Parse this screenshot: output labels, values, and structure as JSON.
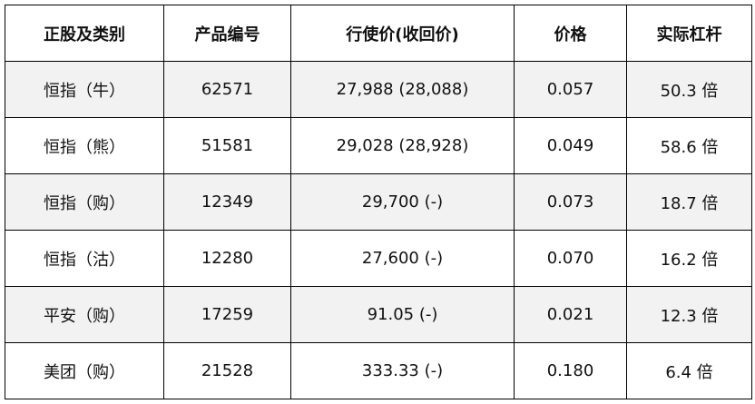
{
  "table": {
    "header": [
      "正股及类别",
      "产品编号",
      "行使价(收回价)",
      "价格",
      "实际杠杆"
    ],
    "rows": [
      [
        "恒指（牛）",
        "62571",
        "27,988 (28,088)",
        "0.057",
        "50.3 倍"
      ],
      [
        "恒指（熊）",
        "51581",
        "29,028 (28,928)",
        "0.049",
        "58.6 倍"
      ],
      [
        "恒指（购）",
        "12349",
        "29,700 (-)",
        "0.073",
        "18.7 倍"
      ],
      [
        "恒指（沽）",
        "12280",
        "27,600 (-)",
        "0.070",
        "16.2 倍"
      ],
      [
        "平安（购）",
        "17259",
        "91.05 (-)",
        "0.021",
        "12.3 倍"
      ],
      [
        "美团（购）",
        "21528",
        "333.33 (-)",
        "0.180",
        "6.4 倍"
      ]
    ]
  }
}
